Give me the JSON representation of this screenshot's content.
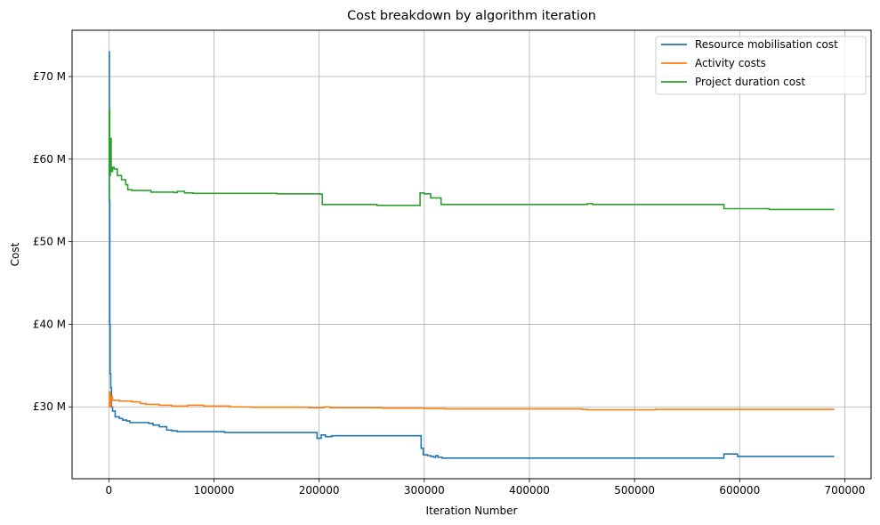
{
  "chart_data": {
    "type": "line",
    "title": "Cost breakdown by algorithm iteration",
    "xlabel": "Iteration Number",
    "ylabel": "Cost",
    "xlim": [
      -35000,
      725000
    ],
    "ylim": [
      21.3,
      75.6
    ],
    "x_ticks": [
      0,
      100000,
      200000,
      300000,
      400000,
      500000,
      600000,
      700000
    ],
    "x_tick_labels": [
      "0",
      "100000",
      "200000",
      "300000",
      "400000",
      "500000",
      "600000",
      "700000"
    ],
    "y_ticks": [
      30,
      40,
      50,
      60,
      70
    ],
    "y_tick_labels": [
      "£30 M",
      "£40 M",
      "£50 M",
      "£60 M",
      "£70 M"
    ],
    "grid": true,
    "legend_position": "top-right",
    "series": [
      {
        "name": "Resource mobilisation cost",
        "color": "#1f77b4",
        "points": [
          [
            0,
            73.0
          ],
          [
            500,
            55.0
          ],
          [
            900,
            40.0
          ],
          [
            1200,
            34.0
          ],
          [
            1800,
            32.3
          ],
          [
            2500,
            30.0
          ],
          [
            3500,
            29.5
          ],
          [
            6000,
            28.8
          ],
          [
            10000,
            28.6
          ],
          [
            13000,
            28.4
          ],
          [
            17000,
            28.3
          ],
          [
            20000,
            28.1
          ],
          [
            38000,
            28.0
          ],
          [
            42000,
            27.8
          ],
          [
            48000,
            27.6
          ],
          [
            55000,
            27.2
          ],
          [
            60000,
            27.1
          ],
          [
            65000,
            27.0
          ],
          [
            110000,
            26.9
          ],
          [
            198000,
            26.2
          ],
          [
            202000,
            26.6
          ],
          [
            206000,
            26.4
          ],
          [
            212000,
            26.5
          ],
          [
            295000,
            26.5
          ],
          [
            297000,
            25.0
          ],
          [
            299000,
            24.2
          ],
          [
            303000,
            24.1
          ],
          [
            306000,
            24.0
          ],
          [
            309000,
            23.9
          ],
          [
            311000,
            24.1
          ],
          [
            313000,
            23.9
          ],
          [
            317000,
            23.8
          ],
          [
            583000,
            23.8
          ],
          [
            585000,
            24.3
          ],
          [
            598000,
            24.0
          ],
          [
            690000,
            24.0
          ]
        ]
      },
      {
        "name": "Activity costs",
        "color": "#ff7f0e",
        "points": [
          [
            0,
            30.0
          ],
          [
            700,
            31.8
          ],
          [
            1300,
            30.0
          ],
          [
            2000,
            31.2
          ],
          [
            3500,
            30.8
          ],
          [
            10000,
            30.7
          ],
          [
            18000,
            30.7
          ],
          [
            22000,
            30.6
          ],
          [
            30000,
            30.4
          ],
          [
            35000,
            30.3
          ],
          [
            48000,
            30.2
          ],
          [
            60000,
            30.1
          ],
          [
            75000,
            30.2
          ],
          [
            90000,
            30.1
          ],
          [
            110000,
            30.1
          ],
          [
            115000,
            30.0
          ],
          [
            135000,
            29.95
          ],
          [
            190000,
            29.9
          ],
          [
            200000,
            29.9
          ],
          [
            205000,
            30.0
          ],
          [
            210000,
            29.9
          ],
          [
            260000,
            29.85
          ],
          [
            300000,
            29.8
          ],
          [
            320000,
            29.75
          ],
          [
            450000,
            29.7
          ],
          [
            455000,
            29.65
          ],
          [
            520000,
            29.7
          ],
          [
            600000,
            29.7
          ],
          [
            690000,
            29.7
          ]
        ]
      },
      {
        "name": "Project duration cost",
        "color": "#2ca02c",
        "points": [
          [
            0,
            55.0
          ],
          [
            300,
            66.0
          ],
          [
            800,
            58.0
          ],
          [
            1400,
            62.5
          ],
          [
            2200,
            58.5
          ],
          [
            3500,
            59.0
          ],
          [
            5000,
            58.8
          ],
          [
            8000,
            58.0
          ],
          [
            12000,
            57.5
          ],
          [
            16000,
            56.9
          ],
          [
            18000,
            56.3
          ],
          [
            22000,
            56.2
          ],
          [
            40000,
            56.0
          ],
          [
            62000,
            55.95
          ],
          [
            65000,
            56.1
          ],
          [
            72000,
            55.9
          ],
          [
            80000,
            55.85
          ],
          [
            160000,
            55.8
          ],
          [
            201000,
            55.75
          ],
          [
            203000,
            54.5
          ],
          [
            255000,
            54.4
          ],
          [
            296000,
            55.9
          ],
          [
            300000,
            55.8
          ],
          [
            306000,
            55.3
          ],
          [
            316000,
            54.5
          ],
          [
            455000,
            54.6
          ],
          [
            460000,
            54.5
          ],
          [
            585000,
            54.0
          ],
          [
            628000,
            53.9
          ],
          [
            690000,
            53.9
          ]
        ]
      }
    ]
  }
}
